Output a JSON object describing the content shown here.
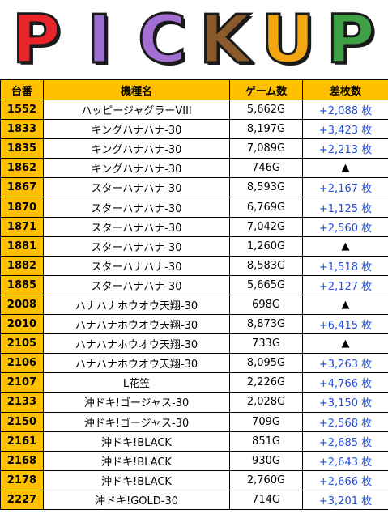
{
  "banner": {
    "letters": [
      {
        "char": "P",
        "color": "#e8252b"
      },
      {
        "char": "I",
        "color": "#9a6fd0"
      },
      {
        "char": "C",
        "color": "#a46fd2"
      },
      {
        "char": "K",
        "color": "#8a5a2c"
      },
      {
        "char": "U",
        "color": "#f2a60f"
      },
      {
        "char": "P",
        "color": "#3fa046"
      }
    ]
  },
  "header": {
    "no": "台番",
    "name": "機種名",
    "games": "ゲーム数",
    "diff": "差枚数"
  },
  "rows": [
    {
      "no": "1552",
      "name": "ハッピージャグラーVIII",
      "games": "5,662G",
      "diff": "+2,088 枚"
    },
    {
      "no": "1833",
      "name": "キングハナハナ-30",
      "games": "8,197G",
      "diff": "+3,423 枚"
    },
    {
      "no": "1835",
      "name": "キングハナハナ-30",
      "games": "7,089G",
      "diff": "+2,213 枚"
    },
    {
      "no": "1862",
      "name": "キングハナハナ-30",
      "games": "746G",
      "diff": "▲"
    },
    {
      "no": "1867",
      "name": "スターハナハナ-30",
      "games": "8,593G",
      "diff": "+2,167 枚"
    },
    {
      "no": "1870",
      "name": "スターハナハナ-30",
      "games": "6,769G",
      "diff": "+1,125 枚"
    },
    {
      "no": "1871",
      "name": "スターハナハナ-30",
      "games": "7,042G",
      "diff": "+2,560 枚"
    },
    {
      "no": "1881",
      "name": "スターハナハナ-30",
      "games": "1,260G",
      "diff": "▲"
    },
    {
      "no": "1882",
      "name": "スターハナハナ-30",
      "games": "8,583G",
      "diff": "+1,518 枚"
    },
    {
      "no": "1885",
      "name": "スターハナハナ-30",
      "games": "5,665G",
      "diff": "+2,127 枚"
    },
    {
      "no": "2008",
      "name": "ハナハナホウオウ天翔-30",
      "games": "698G",
      "diff": "▲"
    },
    {
      "no": "2010",
      "name": "ハナハナホウオウ天翔-30",
      "games": "8,873G",
      "diff": "+6,415 枚"
    },
    {
      "no": "2105",
      "name": "ハナハナホウオウ天翔-30",
      "games": "733G",
      "diff": "▲"
    },
    {
      "no": "2106",
      "name": "ハナハナホウオウ天翔-30",
      "games": "8,095G",
      "diff": "+3,263 枚"
    },
    {
      "no": "2107",
      "name": "L花笠",
      "games": "2,226G",
      "diff": "+4,766 枚"
    },
    {
      "no": "2133",
      "name": "沖ドキ!ゴージャス-30",
      "games": "2,028G",
      "diff": "+3,150 枚"
    },
    {
      "no": "2150",
      "name": "沖ドキ!ゴージャス-30",
      "games": "709G",
      "diff": "+2,568 枚"
    },
    {
      "no": "2161",
      "name": "沖ドキ!BLACK",
      "games": "851G",
      "diff": "+2,685 枚"
    },
    {
      "no": "2168",
      "name": "沖ドキ!BLACK",
      "games": "930G",
      "diff": "+2,643 枚"
    },
    {
      "no": "2178",
      "name": "沖ドキ!BLACK",
      "games": "2,760G",
      "diff": "+2,666 枚"
    },
    {
      "no": "2227",
      "name": "沖ドキ!GOLD-30",
      "games": "714G",
      "diff": "+3,201 枚"
    }
  ]
}
